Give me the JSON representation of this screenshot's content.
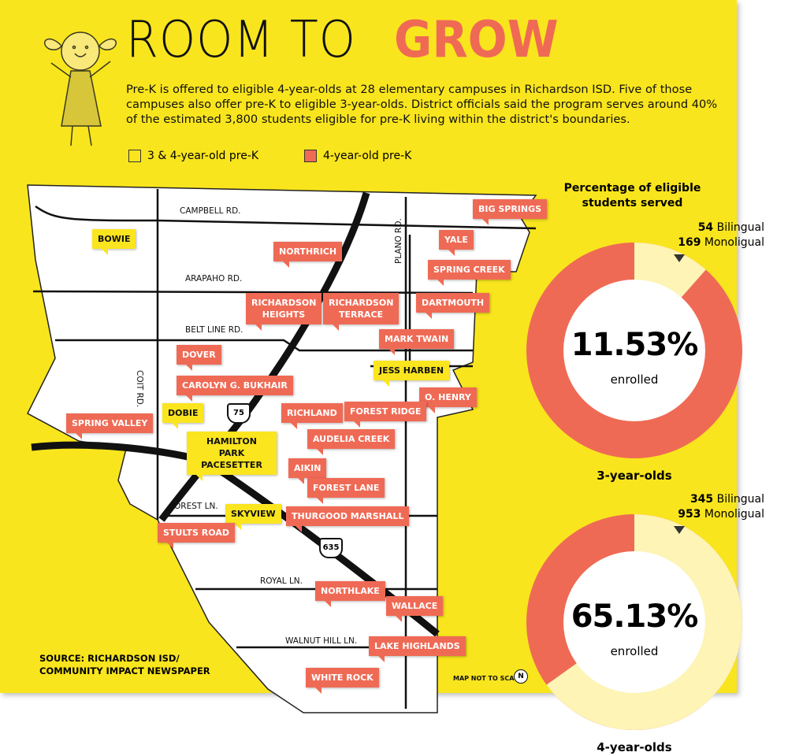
{
  "header": {
    "title_part1": "ROOM TO",
    "title_part2": "GROW",
    "intro": "Pre-K is offered to eligible 4-year-olds at 28 elementary campuses in Richardson ISD. Five of those campuses also offer pre-K to eligible 3-year-olds. District officials said the program serves around 40% of the estimated 3,800 students eligible for pre-K living within the district's boundaries."
  },
  "legend": [
    {
      "label": "3 & 4-year-old pre-K",
      "color": "#fbe51f"
    },
    {
      "label": "4-year-old pre-K",
      "color": "#ef6a55"
    }
  ],
  "map": {
    "schools_3_and_4_year_old": [
      "BOWIE",
      "JESS HARBEN",
      "DOBIE",
      "HAMILTON PARK PACESETTER",
      "SKYVIEW"
    ],
    "schools_4_year_old": [
      "BIG SPRINGS",
      "YALE",
      "NORTHRICH",
      "SPRING CREEK",
      "RICHARDSON HEIGHTS",
      "RICHARDSON TERRACE",
      "DARTMOUTH",
      "MARK TWAIN",
      "DOVER",
      "CAROLYN G. BUKHAIR",
      "O. HENRY",
      "RICHLAND",
      "FOREST RIDGE",
      "SPRING VALLEY",
      "AUDELIA CREEK",
      "AIKIN",
      "FOREST LANE",
      "THURGOOD MARSHALL",
      "STULTS ROAD",
      "NORTHLAKE",
      "WALLACE",
      "LAKE HIGHLANDS",
      "WHITE ROCK"
    ],
    "roads": [
      "CAMPBELL RD.",
      "ARAPAHO RD.",
      "BELT LINE RD.",
      "COIT RD.",
      "PLANO RD.",
      "FOREST LN.",
      "ROYAL LN.",
      "WALNUT HILL LN."
    ],
    "highways": [
      "75",
      "635"
    ],
    "note": "MAP NOT TO SCALE",
    "north": "N"
  },
  "source": [
    "SOURCE: RICHARDSON ISD/",
    "COMMUNITY IMPACT NEWSPAPER"
  ],
  "charts_title": "Percentage of eligible students served",
  "chart_data": [
    {
      "type": "donut",
      "value": 11.53,
      "value_label": "11.53%",
      "sublabel": "enrolled",
      "caption": "3-year-olds",
      "breakdown": [
        {
          "count": 54,
          "label": "Bilingual"
        },
        {
          "count": 169,
          "label": "Monoligual"
        }
      ],
      "colors": {
        "enrolled": "#fdf4b5",
        "rest": "#ef6a55"
      }
    },
    {
      "type": "donut",
      "value": 65.13,
      "value_label": "65.13%",
      "sublabel": "enrolled",
      "caption": "4-year-olds",
      "breakdown": [
        {
          "count": 345,
          "label": "Bilingual"
        },
        {
          "count": 953,
          "label": "Monoligual"
        }
      ],
      "colors": {
        "enrolled": "#fdf4b5",
        "rest": "#ef6a55"
      }
    }
  ]
}
